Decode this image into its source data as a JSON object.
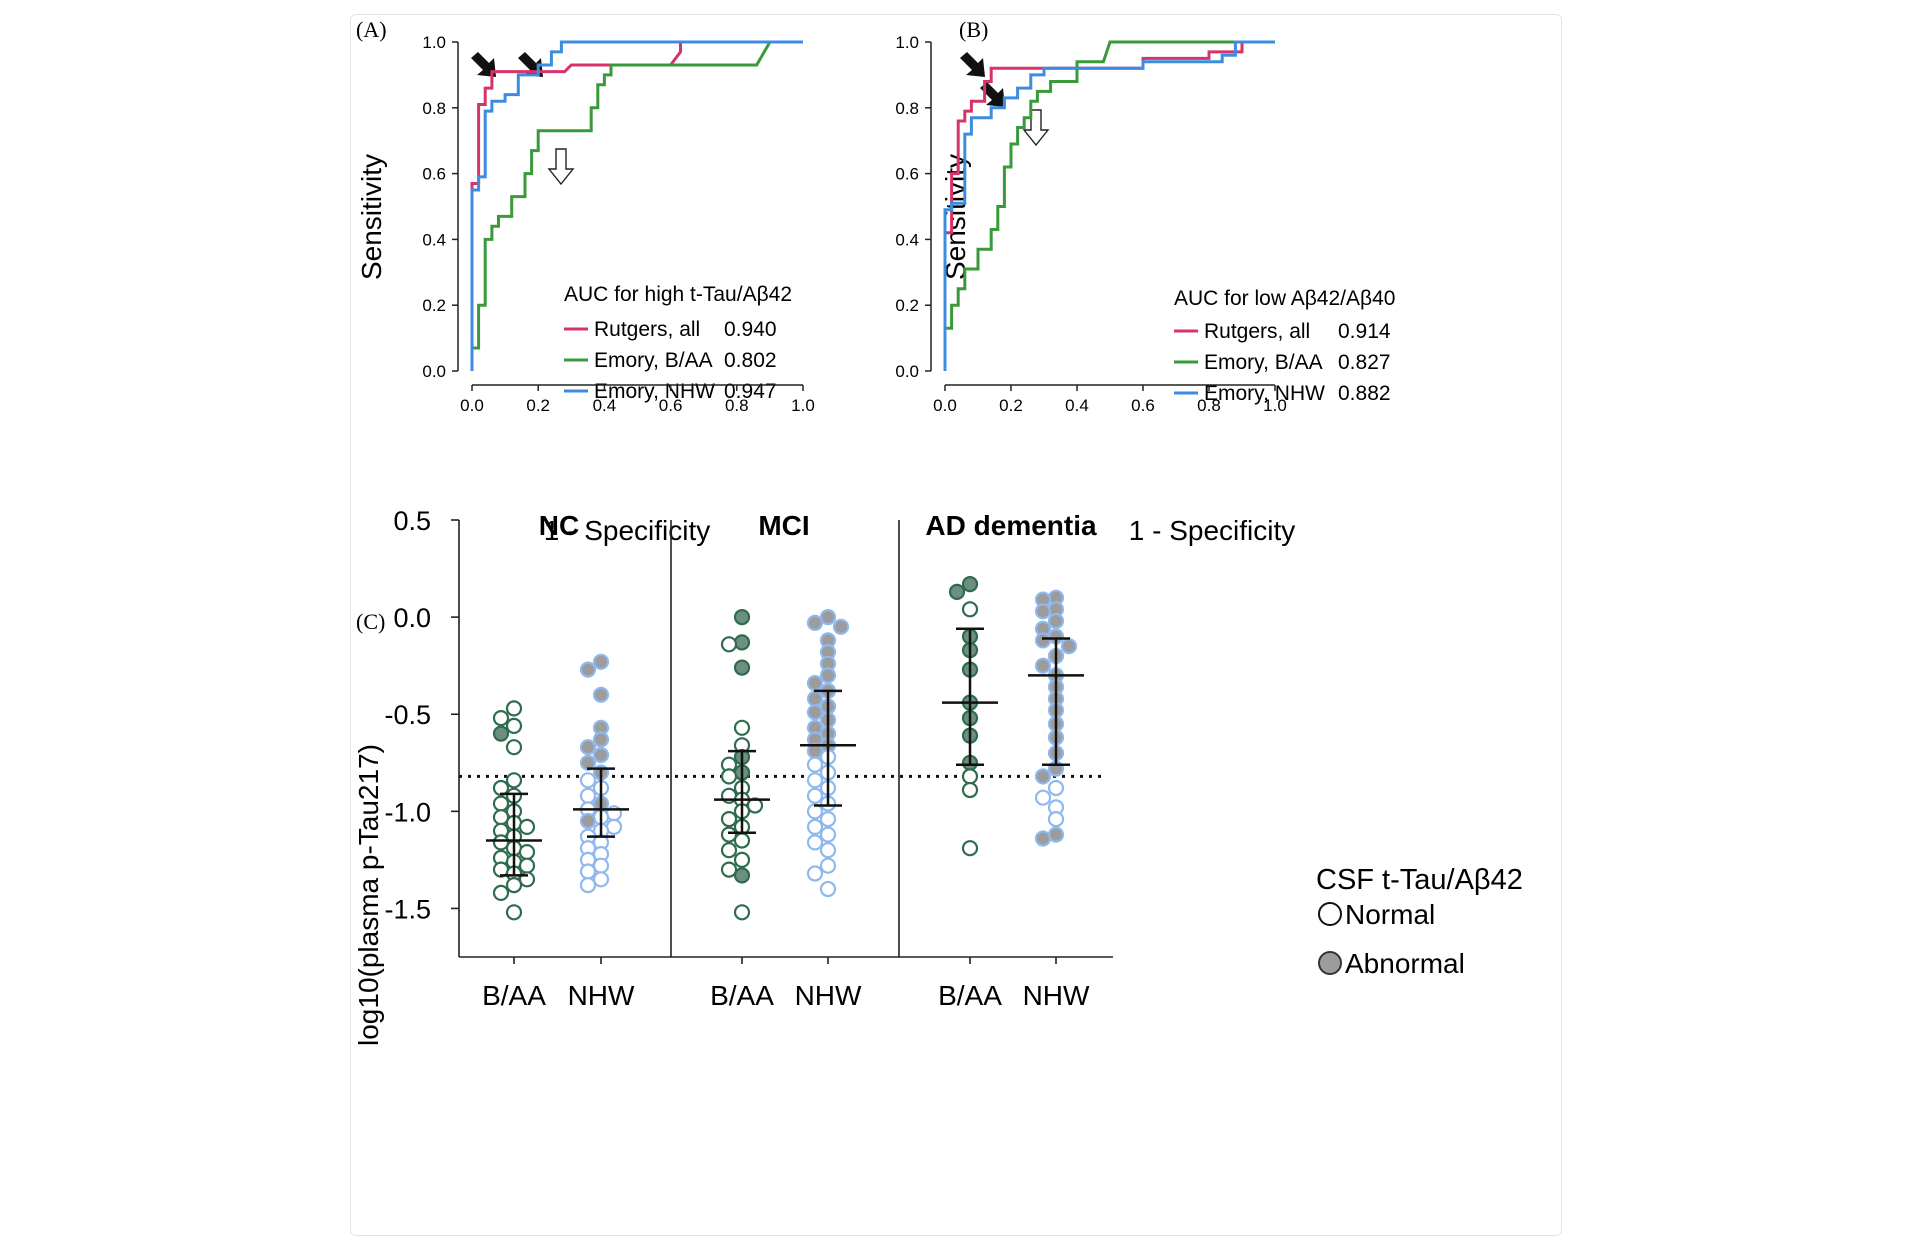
{
  "chart_data": [
    {
      "panel": "(A)",
      "type": "line",
      "title": "",
      "xlabel": "1 - Specificity",
      "ylabel": "Sensitivity",
      "xlim": [
        0,
        1
      ],
      "ylim": [
        0,
        1
      ],
      "xticks": [
        "0.0",
        "0.2",
        "0.4",
        "0.6",
        "0.8",
        "1.0"
      ],
      "yticks": [
        "0.0",
        "0.2",
        "0.4",
        "0.6",
        "0.8",
        "1.0"
      ],
      "legend_title": "AUC for high t-Tau/Aβ42",
      "series": [
        {
          "name": "Rutgers, all",
          "auc": "0.940",
          "color": "#d6336c",
          "x": [
            0,
            0,
            0.02,
            0.02,
            0.04,
            0.04,
            0.06,
            0.06,
            0.28,
            0.3,
            0.6,
            0.63,
            0.63,
            1.0
          ],
          "y": [
            0,
            0.57,
            0.57,
            0.81,
            0.81,
            0.86,
            0.86,
            0.91,
            0.91,
            0.93,
            0.93,
            0.97,
            1.0,
            1.0
          ]
        },
        {
          "name": "Emory, B/AA",
          "auc": "0.802",
          "color": "#3a9a3a",
          "x": [
            0,
            0,
            0.02,
            0.02,
            0.04,
            0.04,
            0.06,
            0.06,
            0.08,
            0.08,
            0.12,
            0.12,
            0.16,
            0.16,
            0.18,
            0.18,
            0.2,
            0.2,
            0.22,
            0.22,
            0.36,
            0.36,
            0.38,
            0.38,
            0.4,
            0.4,
            0.42,
            0.42,
            0.44,
            0.44,
            0.86,
            0.9,
            1.0
          ],
          "y": [
            0,
            0.07,
            0.07,
            0.2,
            0.2,
            0.4,
            0.4,
            0.44,
            0.44,
            0.47,
            0.47,
            0.53,
            0.53,
            0.6,
            0.6,
            0.67,
            0.67,
            0.73,
            0.73,
            0.73,
            0.73,
            0.8,
            0.8,
            0.87,
            0.87,
            0.9,
            0.9,
            0.93,
            0.93,
            0.93,
            0.93,
            1.0,
            1.0
          ]
        },
        {
          "name": "Emory, NHW",
          "auc": "0.947",
          "color": "#3c8de0",
          "x": [
            0,
            0,
            0.02,
            0.02,
            0.04,
            0.04,
            0.06,
            0.06,
            0.1,
            0.1,
            0.14,
            0.14,
            0.2,
            0.2,
            0.24,
            0.24,
            0.27,
            0.27,
            1.0
          ],
          "y": [
            0,
            0.55,
            0.55,
            0.59,
            0.59,
            0.79,
            0.79,
            0.82,
            0.82,
            0.84,
            0.84,
            0.9,
            0.9,
            0.93,
            0.93,
            0.97,
            0.97,
            1.0,
            1.0
          ]
        }
      ],
      "annotations": [
        "filled arrow at Rutgers curve",
        "filled arrow at NHW curve",
        "open arrow at B/AA curve"
      ]
    },
    {
      "panel": "(B)",
      "type": "line",
      "title": "",
      "xlabel": "1 - Specificity",
      "ylabel": "Sensitivity",
      "xlim": [
        0,
        1
      ],
      "ylim": [
        0,
        1
      ],
      "xticks": [
        "0.0",
        "0.2",
        "0.4",
        "0.6",
        "0.8",
        "1.0"
      ],
      "yticks": [
        "0.0",
        "0.2",
        "0.4",
        "0.6",
        "0.8",
        "1.0"
      ],
      "legend_title": "AUC for low Aβ42/Aβ40",
      "series": [
        {
          "name": "Rutgers, all",
          "auc": "0.914",
          "color": "#d6336c",
          "x": [
            0,
            0,
            0.02,
            0.02,
            0.04,
            0.04,
            0.06,
            0.06,
            0.08,
            0.08,
            0.12,
            0.12,
            0.14,
            0.14,
            0.55,
            0.6,
            0.6,
            0.8,
            0.8,
            0.9,
            0.9,
            1.0
          ],
          "y": [
            0,
            0.42,
            0.42,
            0.6,
            0.6,
            0.76,
            0.76,
            0.79,
            0.79,
            0.82,
            0.82,
            0.88,
            0.88,
            0.92,
            0.92,
            0.92,
            0.95,
            0.95,
            0.97,
            0.97,
            1.0,
            1.0
          ]
        },
        {
          "name": "Emory, B/AA",
          "auc": "0.827",
          "color": "#3a9a3a",
          "x": [
            0,
            0,
            0.02,
            0.02,
            0.04,
            0.04,
            0.06,
            0.06,
            0.1,
            0.1,
            0.14,
            0.14,
            0.16,
            0.16,
            0.18,
            0.18,
            0.2,
            0.2,
            0.22,
            0.22,
            0.24,
            0.24,
            0.26,
            0.26,
            0.28,
            0.28,
            0.32,
            0.32,
            0.4,
            0.4,
            0.48,
            0.5,
            0.5,
            1.0
          ],
          "y": [
            0,
            0.13,
            0.13,
            0.2,
            0.2,
            0.25,
            0.25,
            0.31,
            0.31,
            0.37,
            0.37,
            0.43,
            0.43,
            0.5,
            0.5,
            0.62,
            0.62,
            0.69,
            0.69,
            0.74,
            0.74,
            0.77,
            0.77,
            0.82,
            0.82,
            0.85,
            0.85,
            0.88,
            0.88,
            0.94,
            0.94,
            1.0,
            1.0,
            1.0
          ]
        },
        {
          "name": "Emory, NHW",
          "auc": "0.882",
          "color": "#3c8de0",
          "x": [
            0,
            0,
            0.02,
            0.02,
            0.06,
            0.06,
            0.08,
            0.08,
            0.14,
            0.14,
            0.18,
            0.18,
            0.22,
            0.22,
            0.26,
            0.26,
            0.3,
            0.3,
            0.6,
            0.6,
            0.84,
            0.84,
            0.88,
            0.88,
            1.0
          ],
          "y": [
            0,
            0.49,
            0.49,
            0.51,
            0.51,
            0.72,
            0.72,
            0.77,
            0.77,
            0.8,
            0.8,
            0.83,
            0.83,
            0.86,
            0.86,
            0.9,
            0.9,
            0.92,
            0.92,
            0.94,
            0.94,
            0.96,
            0.96,
            1.0,
            1.0
          ]
        }
      ],
      "annotations": [
        "filled arrow at Rutgers curve",
        "filled arrow at NHW curve",
        "open arrow at B/AA curve"
      ]
    },
    {
      "panel": "(C)",
      "type": "scatter",
      "ylabel": "log10(plasma p-Tau217)",
      "ylim": [
        -1.75,
        0.5
      ],
      "yticks": [
        "0.5",
        "0.0",
        "-0.5",
        "-1.0",
        "-1.5"
      ],
      "cutoff_line": -0.82,
      "groups": [
        "NC",
        "MCI",
        "AD dementia"
      ],
      "legend": {
        "title": "CSF t-Tau/Aβ42",
        "normal": "Normal",
        "abnormal": "Abnormal"
      },
      "colors": {
        "baa": "#2f6b4f",
        "baa_fill": "#6d8f80",
        "nhw": "#8fb8ee",
        "nhw_fill": "#9c9c9c"
      },
      "categories": [
        {
          "group": "NC",
          "label": "B/AA",
          "race": "baa",
          "median": -1.15,
          "q1": -1.33,
          "q3": -0.91,
          "points": [
            [
              -0.47,
              0
            ],
            [
              -0.52,
              0
            ],
            [
              -0.56,
              0
            ],
            [
              -0.6,
              1
            ],
            [
              -0.67,
              0
            ],
            [
              -0.84,
              0
            ],
            [
              -0.88,
              0
            ],
            [
              -0.92,
              0
            ],
            [
              -0.96,
              0
            ],
            [
              -1.0,
              0
            ],
            [
              -1.03,
              0
            ],
            [
              -1.06,
              0
            ],
            [
              -1.08,
              0
            ],
            [
              -1.1,
              0
            ],
            [
              -1.13,
              0
            ],
            [
              -1.16,
              0
            ],
            [
              -1.19,
              0
            ],
            [
              -1.21,
              0
            ],
            [
              -1.24,
              0
            ],
            [
              -1.26,
              0
            ],
            [
              -1.28,
              0
            ],
            [
              -1.3,
              0
            ],
            [
              -1.32,
              0
            ],
            [
              -1.35,
              0
            ],
            [
              -1.38,
              0
            ],
            [
              -1.42,
              0
            ],
            [
              -1.52,
              0
            ]
          ]
        },
        {
          "group": "NC",
          "label": "NHW",
          "race": "nhw",
          "median": -0.99,
          "q1": -1.13,
          "q3": -0.78,
          "points": [
            [
              -0.23,
              1
            ],
            [
              -0.27,
              1
            ],
            [
              -0.4,
              1
            ],
            [
              -0.57,
              1
            ],
            [
              -0.63,
              1
            ],
            [
              -0.67,
              1
            ],
            [
              -0.71,
              1
            ],
            [
              -0.75,
              1
            ],
            [
              -0.8,
              1
            ],
            [
              -0.84,
              0
            ],
            [
              -0.88,
              0
            ],
            [
              -0.92,
              0
            ],
            [
              -0.96,
              1
            ],
            [
              -0.99,
              0
            ],
            [
              -1.01,
              0
            ],
            [
              -1.03,
              0
            ],
            [
              -1.05,
              1
            ],
            [
              -1.08,
              0
            ],
            [
              -1.1,
              0
            ],
            [
              -1.13,
              0
            ],
            [
              -1.16,
              0
            ],
            [
              -1.19,
              0
            ],
            [
              -1.22,
              0
            ],
            [
              -1.25,
              0
            ],
            [
              -1.28,
              0
            ],
            [
              -1.31,
              0
            ],
            [
              -1.35,
              0
            ],
            [
              -1.38,
              0
            ]
          ]
        },
        {
          "group": "MCI",
          "label": "B/AA",
          "race": "baa",
          "median": -0.94,
          "q1": -1.11,
          "q3": -0.69,
          "points": [
            [
              0.0,
              1
            ],
            [
              -0.13,
              1
            ],
            [
              -0.14,
              0
            ],
            [
              -0.26,
              1
            ],
            [
              -0.57,
              0
            ],
            [
              -0.66,
              0
            ],
            [
              -0.72,
              1
            ],
            [
              -0.76,
              0
            ],
            [
              -0.8,
              1
            ],
            [
              -0.82,
              0
            ],
            [
              -0.88,
              0
            ],
            [
              -0.92,
              0
            ],
            [
              -0.94,
              0
            ],
            [
              -0.97,
              0
            ],
            [
              -1.0,
              0
            ],
            [
              -1.04,
              0
            ],
            [
              -1.08,
              0
            ],
            [
              -1.12,
              0
            ],
            [
              -1.15,
              0
            ],
            [
              -1.2,
              0
            ],
            [
              -1.25,
              0
            ],
            [
              -1.3,
              0
            ],
            [
              -1.33,
              1
            ],
            [
              -1.52,
              0
            ]
          ]
        },
        {
          "group": "MCI",
          "label": "NHW",
          "race": "nhw",
          "median": -0.66,
          "q1": -0.97,
          "q3": -0.38,
          "points": [
            [
              0.0,
              1
            ],
            [
              -0.03,
              1
            ],
            [
              -0.05,
              1
            ],
            [
              -0.12,
              1
            ],
            [
              -0.18,
              1
            ],
            [
              -0.24,
              1
            ],
            [
              -0.3,
              1
            ],
            [
              -0.34,
              1
            ],
            [
              -0.38,
              1
            ],
            [
              -0.42,
              1
            ],
            [
              -0.46,
              1
            ],
            [
              -0.49,
              1
            ],
            [
              -0.53,
              1
            ],
            [
              -0.57,
              1
            ],
            [
              -0.6,
              1
            ],
            [
              -0.63,
              1
            ],
            [
              -0.66,
              1
            ],
            [
              -0.69,
              1
            ],
            [
              -0.72,
              0
            ],
            [
              -0.76,
              0
            ],
            [
              -0.8,
              0
            ],
            [
              -0.84,
              0
            ],
            [
              -0.88,
              0
            ],
            [
              -0.92,
              0
            ],
            [
              -0.96,
              0
            ],
            [
              -1.0,
              0
            ],
            [
              -1.04,
              0
            ],
            [
              -1.08,
              0
            ],
            [
              -1.12,
              0
            ],
            [
              -1.16,
              0
            ],
            [
              -1.2,
              0
            ],
            [
              -1.28,
              0
            ],
            [
              -1.32,
              0
            ],
            [
              -1.4,
              0
            ]
          ]
        },
        {
          "group": "AD dementia",
          "label": "B/AA",
          "race": "baa",
          "median": -0.44,
          "q1": -0.76,
          "q3": -0.06,
          "points": [
            [
              0.17,
              1
            ],
            [
              0.13,
              1
            ],
            [
              0.04,
              0
            ],
            [
              -0.1,
              1
            ],
            [
              -0.17,
              1
            ],
            [
              -0.27,
              1
            ],
            [
              -0.44,
              1
            ],
            [
              -0.52,
              1
            ],
            [
              -0.61,
              1
            ],
            [
              -0.75,
              1
            ],
            [
              -0.82,
              0
            ],
            [
              -0.89,
              0
            ],
            [
              -1.19,
              0
            ]
          ]
        },
        {
          "group": "AD dementia",
          "label": "NHW",
          "race": "nhw",
          "median": -0.3,
          "q1": -0.76,
          "q3": -0.11,
          "points": [
            [
              0.1,
              1
            ],
            [
              0.09,
              1
            ],
            [
              0.04,
              1
            ],
            [
              0.03,
              1
            ],
            [
              -0.02,
              1
            ],
            [
              -0.06,
              1
            ],
            [
              -0.1,
              1
            ],
            [
              -0.12,
              1
            ],
            [
              -0.15,
              1
            ],
            [
              -0.2,
              1
            ],
            [
              -0.25,
              1
            ],
            [
              -0.3,
              1
            ],
            [
              -0.36,
              1
            ],
            [
              -0.42,
              1
            ],
            [
              -0.48,
              1
            ],
            [
              -0.55,
              1
            ],
            [
              -0.62,
              1
            ],
            [
              -0.7,
              1
            ],
            [
              -0.78,
              1
            ],
            [
              -0.82,
              1
            ],
            [
              -0.88,
              0
            ],
            [
              -0.93,
              0
            ],
            [
              -0.98,
              0
            ],
            [
              -1.04,
              0
            ],
            [
              -1.12,
              1
            ],
            [
              -1.14,
              1
            ]
          ]
        }
      ]
    }
  ]
}
